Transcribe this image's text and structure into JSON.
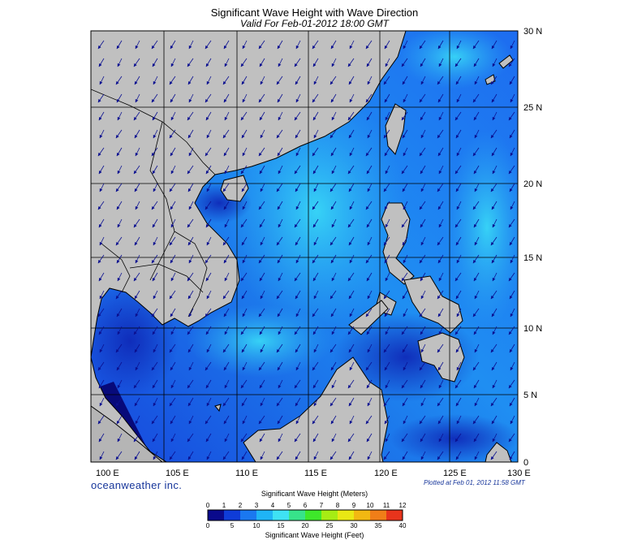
{
  "title": "Significant Wave Height with Wave Direction",
  "subtitle": "Valid For Feb-01-2012 18:00 GMT",
  "credit": "oceanweather inc.",
  "plotted": "Plotted at Feb 01, 2012 11:58 GMT",
  "lon_labels": [
    "100 E",
    "105 E",
    "110 E",
    "115 E",
    "120 E",
    "125 E",
    "130 E"
  ],
  "lat_labels": [
    "30 N",
    "25 N",
    "20 N",
    "15 N",
    "10 N",
    "5 N",
    "0"
  ],
  "colorbar": {
    "title_meters": "Significant Wave Height (Meters)",
    "title_feet": "Significant Wave Height (Feet)",
    "meters_ticks": [
      "0",
      "1",
      "2",
      "3",
      "4",
      "5",
      "6",
      "7",
      "8",
      "9",
      "10",
      "11",
      "12"
    ],
    "feet_ticks": [
      "0",
      "5",
      "10",
      "15",
      "20",
      "25",
      "30",
      "35",
      "40"
    ],
    "colors": [
      "#0a0a8c",
      "#0f3cd8",
      "#1a78f0",
      "#1fb4f6",
      "#3fe2f4",
      "#37e38a",
      "#3ee82a",
      "#a6ec14",
      "#e9e814",
      "#f2b812",
      "#f07e18",
      "#e8341c"
    ]
  },
  "colors": {
    "land": "#c0c0c0",
    "sea_deep": "#1646dc",
    "sea_mid": "#1b78ee",
    "sea_high": "#2bb8f4",
    "arrow": "#0b1090"
  },
  "wave_direction": "from northeast toward southwest"
}
